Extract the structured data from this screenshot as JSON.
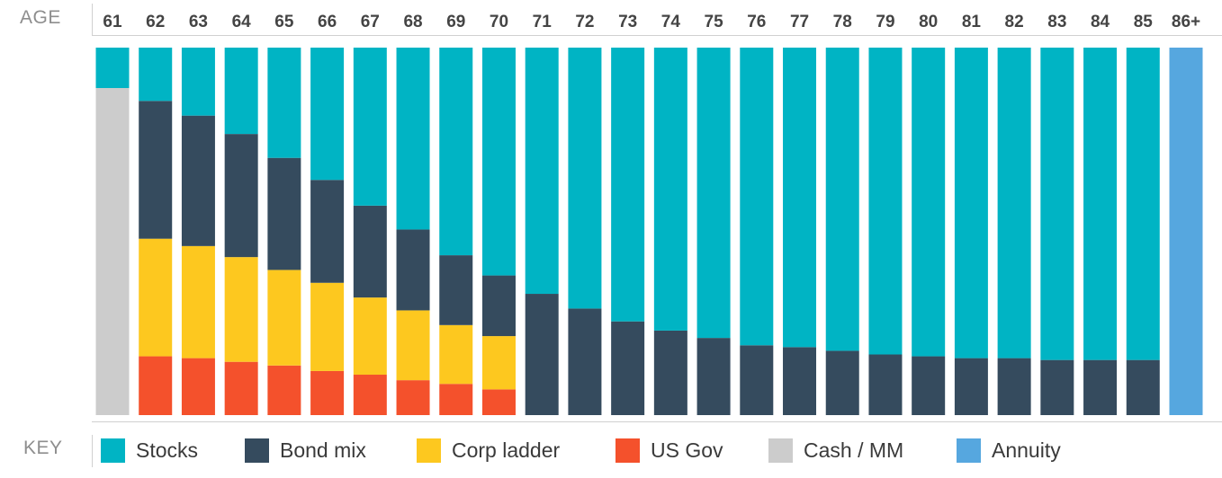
{
  "header_label": "AGE",
  "key_label": "KEY",
  "colors": {
    "stocks": "#00b4c4",
    "bond_mix": "#354b5e",
    "corp_ladder": "#fdc81f",
    "us_gov": "#f4512c",
    "cash_mm": "#cccccc",
    "annuity": "#56a7df"
  },
  "legend": [
    {
      "key": "stocks",
      "label": "Stocks"
    },
    {
      "key": "bond_mix",
      "label": "Bond mix"
    },
    {
      "key": "corp_ladder",
      "label": "Corp ladder"
    },
    {
      "key": "us_gov",
      "label": "US Gov"
    },
    {
      "key": "cash_mm",
      "label": "Cash / MM"
    },
    {
      "key": "annuity",
      "label": "Annuity"
    }
  ],
  "chart_data": {
    "type": "bar",
    "stacked": true,
    "percent": true,
    "x_title": "AGE",
    "categories": [
      "61",
      "62",
      "63",
      "64",
      "65",
      "66",
      "67",
      "68",
      "69",
      "70",
      "71",
      "72",
      "73",
      "74",
      "75",
      "76",
      "77",
      "78",
      "79",
      "80",
      "81",
      "82",
      "83",
      "84",
      "85",
      "86+"
    ],
    "series": [
      {
        "name": "US Gov",
        "key": "us_gov",
        "values": [
          0,
          16,
          15.5,
          14.5,
          13.5,
          12,
          11,
          9.5,
          8.5,
          7,
          0,
          0,
          0,
          0,
          0,
          0,
          0,
          0,
          0,
          0,
          0,
          0,
          0,
          0,
          0,
          0
        ]
      },
      {
        "name": "Corp ladder",
        "key": "corp_ladder",
        "values": [
          0,
          32,
          30.5,
          28.5,
          26,
          24,
          21,
          19,
          16,
          14.5,
          0,
          0,
          0,
          0,
          0,
          0,
          0,
          0,
          0,
          0,
          0,
          0,
          0,
          0,
          0,
          0
        ]
      },
      {
        "name": "Bond mix",
        "key": "bond_mix",
        "values": [
          0,
          37.5,
          35.5,
          33.5,
          30.5,
          28,
          25,
          22,
          19,
          16.5,
          33,
          29,
          25.5,
          23,
          21,
          19,
          18.5,
          17.5,
          16.5,
          16,
          15.5,
          15.5,
          15,
          15,
          15,
          0
        ]
      },
      {
        "name": "Cash / MM",
        "key": "cash_mm",
        "values": [
          89,
          0,
          0,
          0,
          0,
          0,
          0,
          0,
          0,
          0,
          0,
          0,
          0,
          0,
          0,
          0,
          0,
          0,
          0,
          0,
          0,
          0,
          0,
          0,
          0,
          0
        ]
      },
      {
        "name": "Stocks",
        "key": "stocks",
        "values": [
          11,
          14.5,
          18.5,
          23.5,
          30,
          36,
          43,
          49.5,
          56.5,
          62,
          67,
          71,
          74.5,
          77,
          79,
          81,
          81.5,
          82.5,
          83.5,
          84,
          84.5,
          84.5,
          85,
          85,
          85,
          0
        ]
      },
      {
        "name": "Annuity",
        "key": "annuity",
        "values": [
          0,
          0,
          0,
          0,
          0,
          0,
          0,
          0,
          0,
          0,
          0,
          0,
          0,
          0,
          0,
          0,
          0,
          0,
          0,
          0,
          0,
          0,
          0,
          0,
          0,
          100
        ]
      }
    ],
    "ylim": [
      0,
      100
    ],
    "grid": false,
    "legend_position": "bottom"
  }
}
